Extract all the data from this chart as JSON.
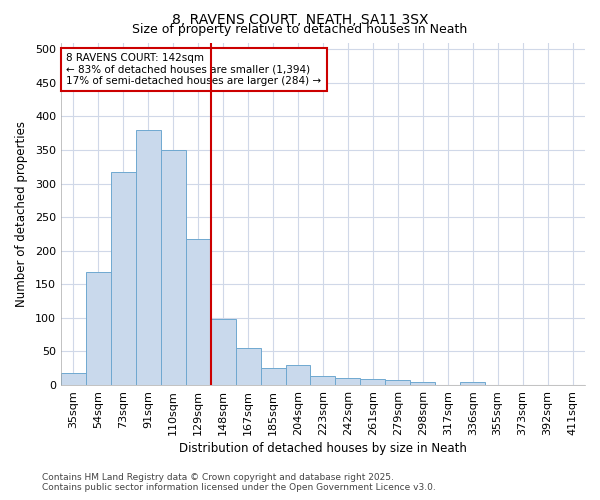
{
  "title": "8, RAVENS COURT, NEATH, SA11 3SX",
  "subtitle": "Size of property relative to detached houses in Neath",
  "xlabel": "Distribution of detached houses by size in Neath",
  "ylabel": "Number of detached properties",
  "categories": [
    "35sqm",
    "54sqm",
    "73sqm",
    "91sqm",
    "110sqm",
    "129sqm",
    "148sqm",
    "167sqm",
    "185sqm",
    "204sqm",
    "223sqm",
    "242sqm",
    "261sqm",
    "279sqm",
    "298sqm",
    "317sqm",
    "336sqm",
    "355sqm",
    "373sqm",
    "392sqm",
    "411sqm"
  ],
  "values": [
    18,
    168,
    317,
    380,
    350,
    218,
    99,
    55,
    25,
    30,
    14,
    11,
    9,
    7,
    5,
    0,
    4,
    0,
    0,
    0,
    0
  ],
  "bar_color": "#c9d9ec",
  "bar_edge_color": "#6fa8d0",
  "annotation_line_index": 6.0,
  "annotation_box_text": "8 RAVENS COURT: 142sqm\n← 83% of detached houses are smaller (1,394)\n17% of semi-detached houses are larger (284) →",
  "ylim": [
    0,
    510
  ],
  "yticks": [
    0,
    50,
    100,
    150,
    200,
    250,
    300,
    350,
    400,
    450,
    500
  ],
  "footer_line1": "Contains HM Land Registry data © Crown copyright and database right 2025.",
  "footer_line2": "Contains public sector information licensed under the Open Government Licence v3.0.",
  "bg_color": "#ffffff",
  "plot_bg_color": "#ffffff",
  "grid_color": "#d0d8e8",
  "red_line_color": "#cc0000",
  "box_edge_color": "#cc0000",
  "title_fontsize": 10,
  "subtitle_fontsize": 9,
  "axis_label_fontsize": 8.5,
  "tick_fontsize": 8,
  "annotation_fontsize": 7.5,
  "footer_fontsize": 6.5
}
